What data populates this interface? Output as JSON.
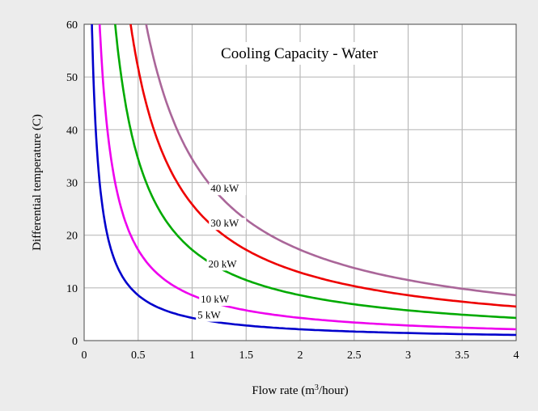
{
  "chart_data": {
    "type": "line",
    "title": "Cooling Capacity - Water",
    "xlabel": "Flow rate (m",
    "xlabel_sup": "3",
    "xlabel_tail": "/hour)",
    "ylabel": "Differential temperature (C)",
    "xlim": [
      0,
      4
    ],
    "ylim": [
      0,
      60
    ],
    "xticks": [
      0,
      0.5,
      1,
      1.5,
      2,
      2.5,
      3,
      3.5,
      4
    ],
    "xtick_labels": [
      "0",
      "0.5",
      "1",
      "1.5",
      "2",
      "2.5",
      "3",
      "3.5",
      "4"
    ],
    "yticks": [
      0,
      10,
      20,
      30,
      40,
      50,
      60
    ],
    "ytick_labels": [
      "0",
      "10",
      "20",
      "30",
      "40",
      "50",
      "60"
    ],
    "grid": true,
    "series": [
      {
        "name": "5 kW",
        "color": "#0000cc",
        "capacity_kw": 5,
        "label_x": 1.05,
        "label_y": 4.2
      },
      {
        "name": "10 kW",
        "color": "#ee00ee",
        "capacity_kw": 10,
        "label_x": 1.08,
        "label_y": 7.2
      },
      {
        "name": "20 kW",
        "color": "#00aa00",
        "capacity_kw": 20,
        "label_x": 1.15,
        "label_y": 13.9
      },
      {
        "name": "30 kW",
        "color": "#ee0000",
        "capacity_kw": 30,
        "label_x": 1.17,
        "label_y": 21.6
      },
      {
        "name": "40 kW",
        "color": "#aa6699",
        "capacity_kw": 40,
        "label_x": 1.17,
        "label_y": 28.2
      }
    ]
  }
}
